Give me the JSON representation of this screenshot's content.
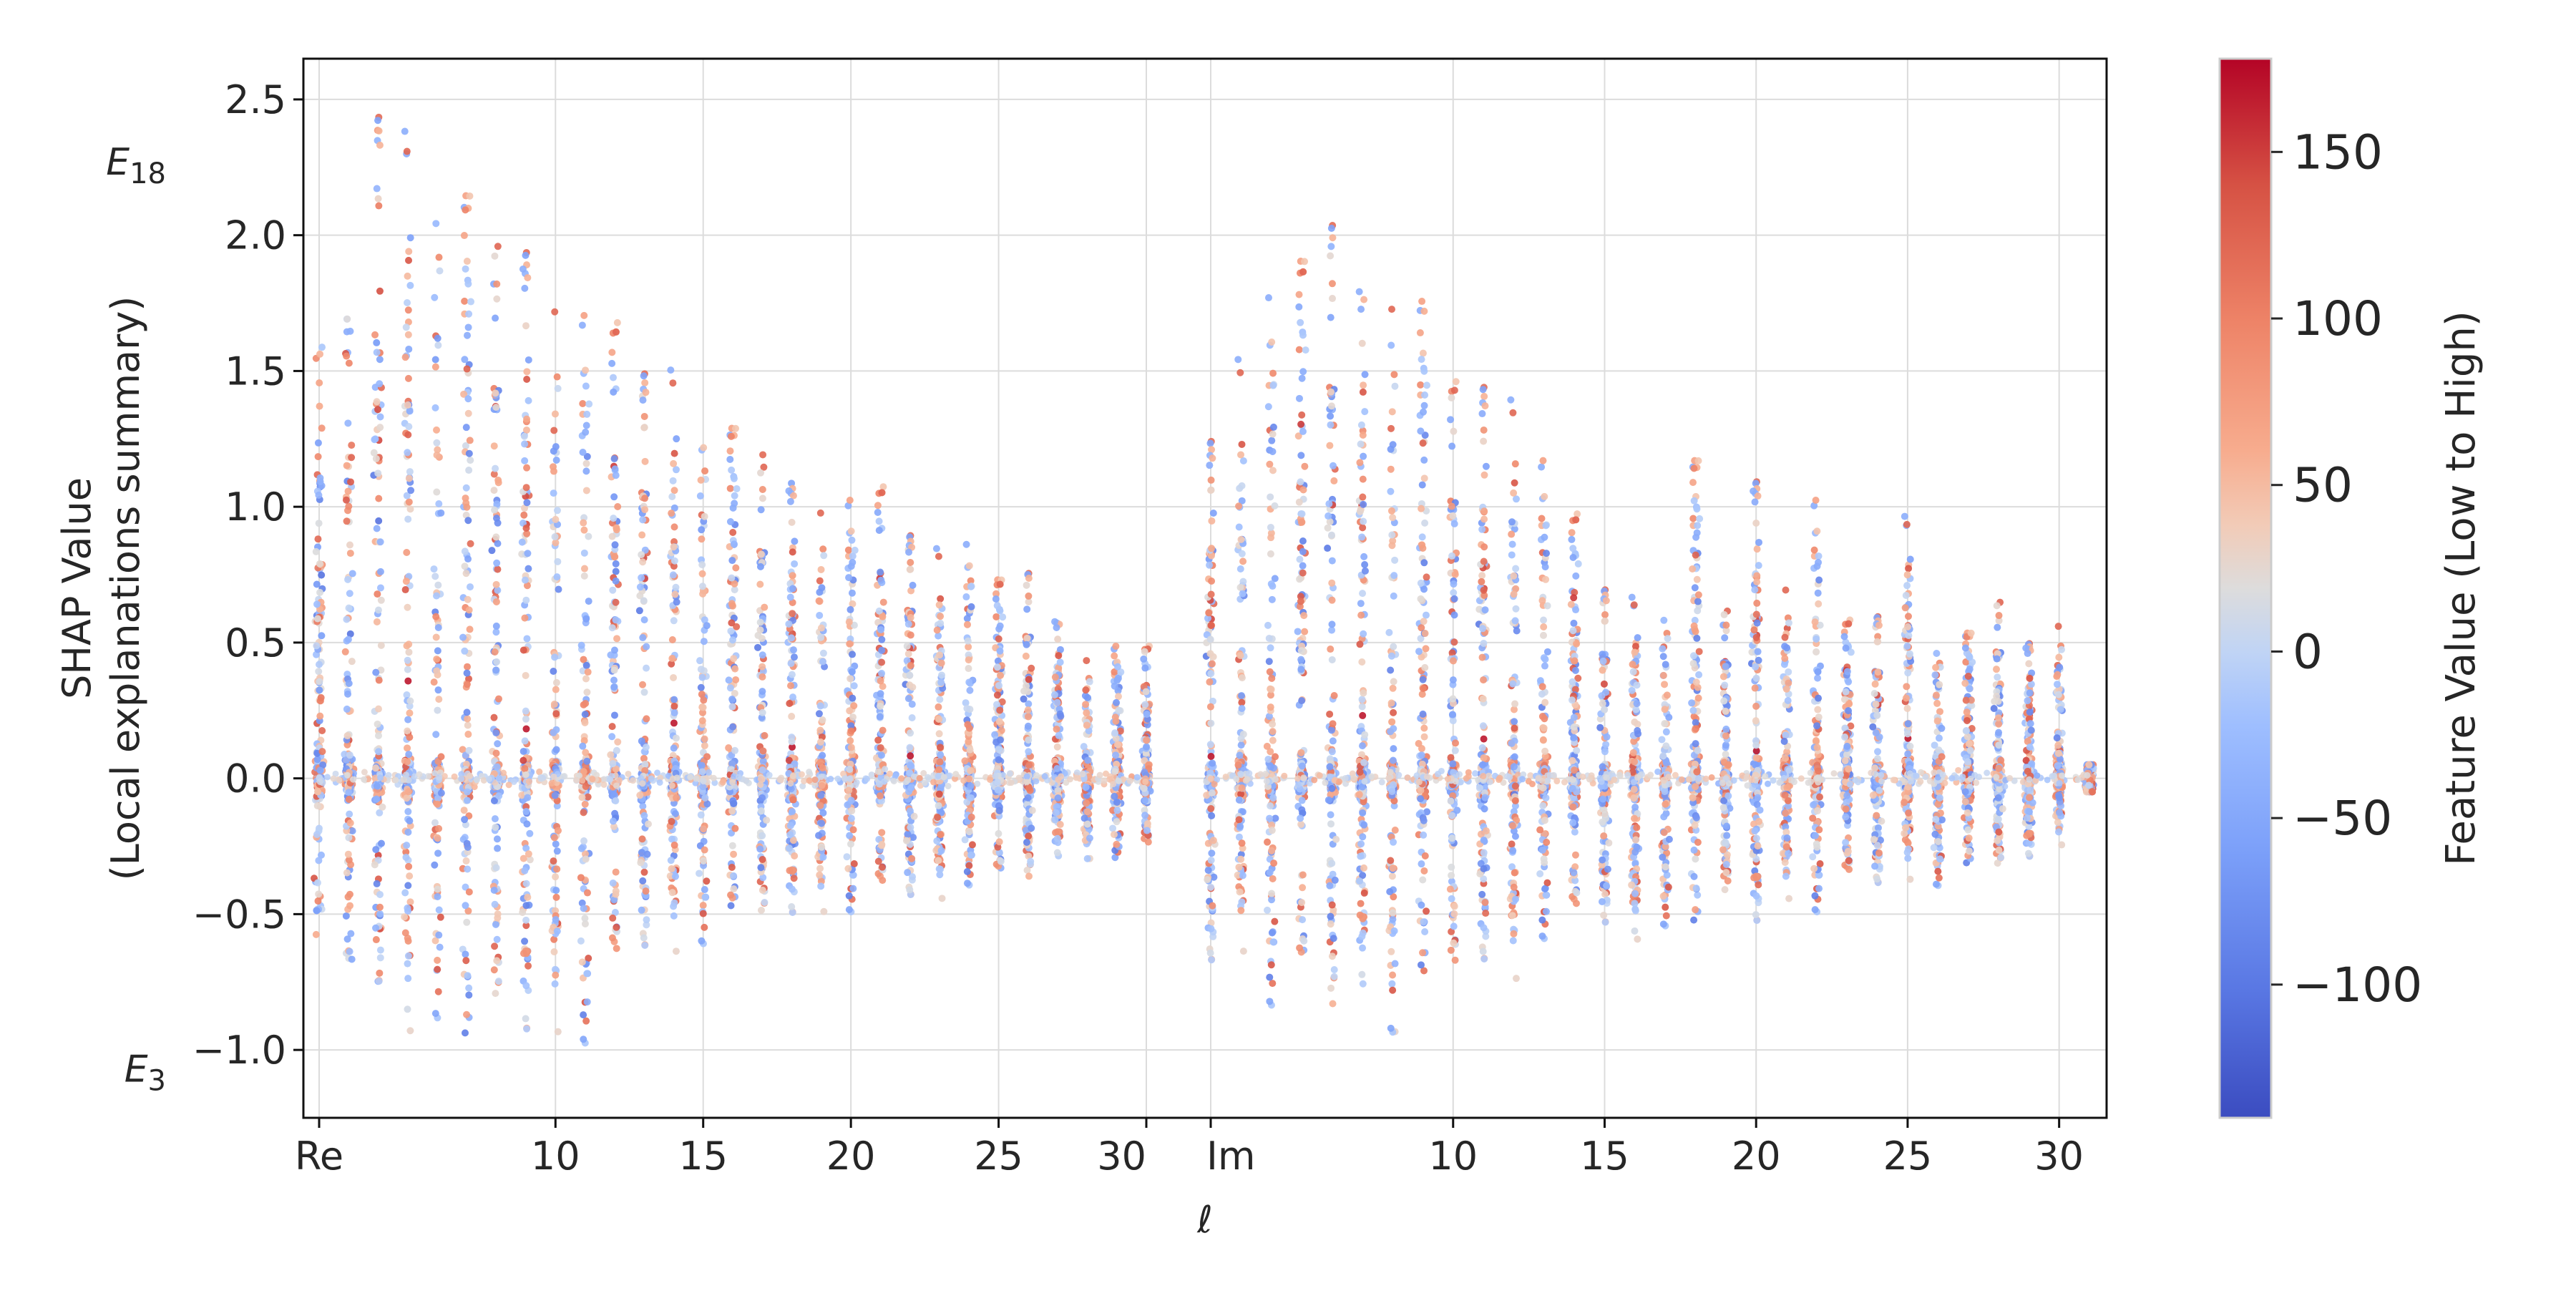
{
  "chart_data": {
    "type": "scatter",
    "title": "",
    "xlabel": "ℓ",
    "ylabel_line1": "SHAP Value",
    "ylabel_line2": "(Local explanations summary)",
    "ylim": [
      -1.25,
      2.65
    ],
    "yticks": [
      -1.0,
      -0.5,
      0.0,
      0.5,
      1.0,
      1.5,
      2.0,
      2.5
    ],
    "ytick_labels": [
      "−1.0",
      "−0.5",
      "0.0",
      "0.5",
      "1.0",
      "1.5",
      "2.0",
      "2.5"
    ],
    "level_labels": [
      {
        "base": "E",
        "sub": "18",
        "y": 2.27
      },
      {
        "base": "E",
        "sub": "3",
        "y": -1.07
      }
    ],
    "segments": [
      {
        "name": "Re",
        "l_min": 2,
        "l_max": 30
      },
      {
        "name": "Im",
        "l_min": 2,
        "l_max": 31
      }
    ],
    "xticks": [
      {
        "segment": 0,
        "l": 2,
        "label": "Re"
      },
      {
        "segment": 0,
        "l": 10,
        "label": "10"
      },
      {
        "segment": 0,
        "l": 15,
        "label": "15"
      },
      {
        "segment": 0,
        "l": 20,
        "label": "20"
      },
      {
        "segment": 0,
        "l": 25,
        "label": "25"
      },
      {
        "segment": 0,
        "l": 30,
        "label": "30"
      },
      {
        "segment": 1,
        "l": 2,
        "label": "Im"
      },
      {
        "segment": 1,
        "l": 10,
        "label": "10"
      },
      {
        "segment": 1,
        "l": 15,
        "label": "15"
      },
      {
        "segment": 1,
        "l": 20,
        "label": "20"
      },
      {
        "segment": 1,
        "l": 25,
        "label": "25"
      },
      {
        "segment": 1,
        "l": 30,
        "label": "30"
      }
    ],
    "columns_re": [
      {
        "l": 2,
        "ymin": -0.6,
        "ymax": 1.6
      },
      {
        "l": 3,
        "ymin": -0.8,
        "ymax": 1.7
      },
      {
        "l": 4,
        "ymin": -0.8,
        "ymax": 2.45
      },
      {
        "l": 5,
        "ymin": -0.95,
        "ymax": 2.47
      },
      {
        "l": 6,
        "ymin": -0.9,
        "ymax": 2.35
      },
      {
        "l": 7,
        "ymin": -1.08,
        "ymax": 2.2
      },
      {
        "l": 8,
        "ymin": -0.9,
        "ymax": 2.05
      },
      {
        "l": 9,
        "ymin": -0.97,
        "ymax": 1.95
      },
      {
        "l": 10,
        "ymin": -0.95,
        "ymax": 1.85
      },
      {
        "l": 11,
        "ymin": -0.99,
        "ymax": 1.75
      },
      {
        "l": 12,
        "ymin": -0.75,
        "ymax": 1.72
      },
      {
        "l": 13,
        "ymin": -0.65,
        "ymax": 1.5
      },
      {
        "l": 14,
        "ymin": -0.65,
        "ymax": 1.56
      },
      {
        "l": 15,
        "ymin": -0.62,
        "ymax": 1.4
      },
      {
        "l": 16,
        "ymin": -0.55,
        "ymax": 1.32
      },
      {
        "l": 17,
        "ymin": -0.55,
        "ymax": 1.2
      },
      {
        "l": 18,
        "ymin": -0.52,
        "ymax": 1.1
      },
      {
        "l": 19,
        "ymin": -0.5,
        "ymax": 1.05
      },
      {
        "l": 20,
        "ymin": -0.5,
        "ymax": 1.05
      },
      {
        "l": 21,
        "ymin": -0.45,
        "ymax": 1.1
      },
      {
        "l": 22,
        "ymin": -0.45,
        "ymax": 0.9
      },
      {
        "l": 23,
        "ymin": -0.45,
        "ymax": 0.88
      },
      {
        "l": 24,
        "ymin": -0.4,
        "ymax": 0.9
      },
      {
        "l": 25,
        "ymin": -0.4,
        "ymax": 0.75
      },
      {
        "l": 26,
        "ymin": -0.38,
        "ymax": 0.76
      },
      {
        "l": 27,
        "ymin": -0.3,
        "ymax": 0.6
      },
      {
        "l": 28,
        "ymin": -0.3,
        "ymax": 0.47
      },
      {
        "l": 29,
        "ymin": -0.3,
        "ymax": 0.5
      },
      {
        "l": 30,
        "ymin": -0.28,
        "ymax": 0.5
      }
    ],
    "columns_im": [
      {
        "l": 2,
        "ymin": -0.7,
        "ymax": 1.25
      },
      {
        "l": 3,
        "ymin": -0.65,
        "ymax": 1.6
      },
      {
        "l": 4,
        "ymin": -0.85,
        "ymax": 1.85
      },
      {
        "l": 5,
        "ymin": -0.8,
        "ymax": 1.95
      },
      {
        "l": 6,
        "ymin": -0.88,
        "ymax": 2.05
      },
      {
        "l": 7,
        "ymin": -0.8,
        "ymax": 1.86
      },
      {
        "l": 8,
        "ymin": -0.95,
        "ymax": 1.86
      },
      {
        "l": 9,
        "ymin": -0.8,
        "ymax": 1.8
      },
      {
        "l": 10,
        "ymin": -0.8,
        "ymax": 1.5
      },
      {
        "l": 11,
        "ymin": -0.7,
        "ymax": 1.45
      },
      {
        "l": 12,
        "ymin": -0.75,
        "ymax": 1.45
      },
      {
        "l": 13,
        "ymin": -0.6,
        "ymax": 1.2
      },
      {
        "l": 14,
        "ymin": -0.55,
        "ymax": 1.0
      },
      {
        "l": 15,
        "ymin": -0.55,
        "ymax": 0.7
      },
      {
        "l": 16,
        "ymin": -0.6,
        "ymax": 0.7
      },
      {
        "l": 17,
        "ymin": -0.55,
        "ymax": 0.7
      },
      {
        "l": 18,
        "ymin": -0.6,
        "ymax": 1.2
      },
      {
        "l": 19,
        "ymin": -0.45,
        "ymax": 0.65
      },
      {
        "l": 20,
        "ymin": -0.55,
        "ymax": 1.1
      },
      {
        "l": 21,
        "ymin": -0.45,
        "ymax": 0.75
      },
      {
        "l": 22,
        "ymin": -0.5,
        "ymax": 1.05
      },
      {
        "l": 23,
        "ymin": -0.4,
        "ymax": 0.6
      },
      {
        "l": 24,
        "ymin": -0.4,
        "ymax": 0.6
      },
      {
        "l": 25,
        "ymin": -0.38,
        "ymax": 1.0
      },
      {
        "l": 26,
        "ymin": -0.4,
        "ymax": 0.55
      },
      {
        "l": 27,
        "ymin": -0.35,
        "ymax": 0.55
      },
      {
        "l": 28,
        "ymin": -0.35,
        "ymax": 0.68
      },
      {
        "l": 29,
        "ymin": -0.3,
        "ymax": 0.5
      },
      {
        "l": 30,
        "ymin": -0.25,
        "ymax": 0.6
      },
      {
        "l": 31,
        "ymin": -0.05,
        "ymax": 0.05
      }
    ],
    "colorbar": {
      "label": "Feature Value (Low to High)",
      "min": -140,
      "max": 178,
      "ticks": [
        -100,
        -50,
        0,
        50,
        100,
        150
      ],
      "tick_labels": [
        "−100",
        "−50",
        "0",
        "50",
        "100",
        "150"
      ],
      "colormap": "coolwarm",
      "low_color": "#3b4cc0",
      "mid_color": "#dddddd",
      "high_color": "#b40426"
    },
    "grid": true,
    "legend": "colorbar at right"
  }
}
